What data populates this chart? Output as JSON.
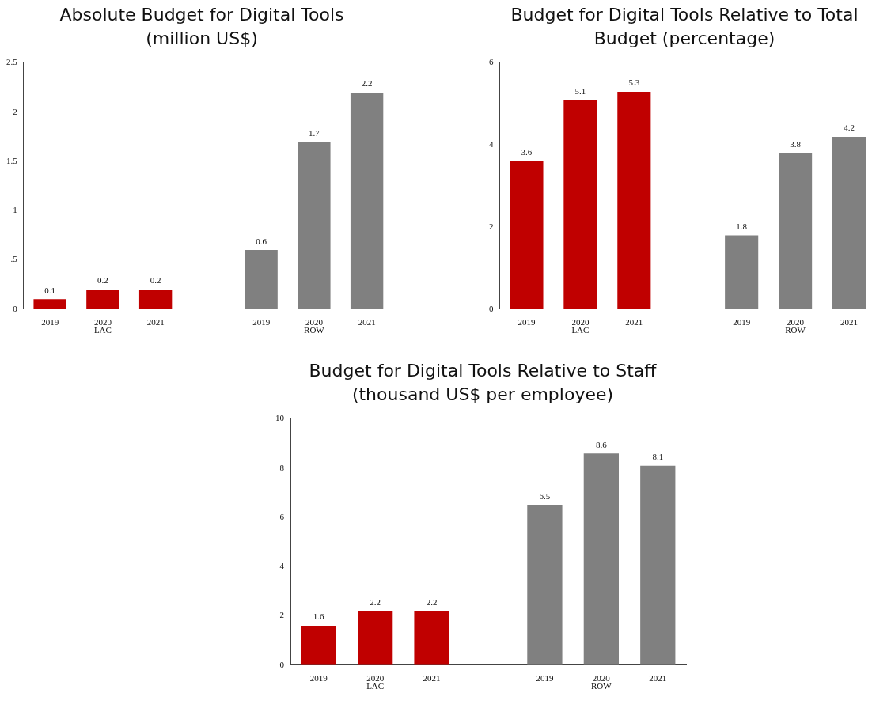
{
  "chart_data": [
    {
      "type": "bar",
      "title": "Absolute Budget for Digital Tools (million US$)",
      "categories": [
        "2019",
        "2020",
        "2021",
        null,
        "2019",
        "2020",
        "2021"
      ],
      "series": [
        {
          "name": "LAC",
          "color": "#c00000",
          "values": [
            0.1,
            0.2,
            0.2,
            null,
            null,
            null,
            null
          ]
        },
        {
          "name": "ROW",
          "color": "#808080",
          "values": [
            null,
            null,
            null,
            null,
            0.6,
            1.7,
            2.2
          ]
        }
      ],
      "ylim": [
        0,
        2.5
      ],
      "yticks": [
        0,
        {
          "value": 0.5,
          "label": ".5"
        },
        1,
        1.5,
        2,
        2.5
      ],
      "data_labels": true,
      "legend": false,
      "grid": false
    },
    {
      "type": "bar",
      "title": "Budget for Digital Tools Relative to Total Budget (percentage)",
      "categories": [
        "2019",
        "2020",
        "2021",
        null,
        "2019",
        "2020",
        "2021"
      ],
      "series": [
        {
          "name": "LAC",
          "color": "#c00000",
          "values": [
            3.6,
            5.1,
            5.3,
            null,
            null,
            null,
            null
          ]
        },
        {
          "name": "ROW",
          "color": "#808080",
          "values": [
            null,
            null,
            null,
            null,
            1.8,
            3.8,
            4.2
          ]
        }
      ],
      "ylim": [
        0,
        6
      ],
      "yticks": [
        0,
        2,
        4,
        6
      ],
      "data_labels": true,
      "legend": false,
      "grid": false
    },
    {
      "type": "bar",
      "title": "Budget for Digital Tools Relative to Staff (thousand US$ per employee)",
      "categories": [
        "2019",
        "2020",
        "2021",
        null,
        "2019",
        "2020",
        "2021"
      ],
      "series": [
        {
          "name": "LAC",
          "color": "#c00000",
          "values": [
            1.6,
            2.2,
            2.2,
            null,
            null,
            null,
            null
          ]
        },
        {
          "name": "ROW",
          "color": "#808080",
          "values": [
            null,
            null,
            null,
            null,
            6.5,
            8.6,
            8.1
          ]
        }
      ],
      "ylim": [
        0,
        10
      ],
      "yticks": [
        0,
        2,
        4,
        6,
        8,
        10
      ],
      "data_labels": true,
      "legend": false,
      "grid": false
    }
  ]
}
